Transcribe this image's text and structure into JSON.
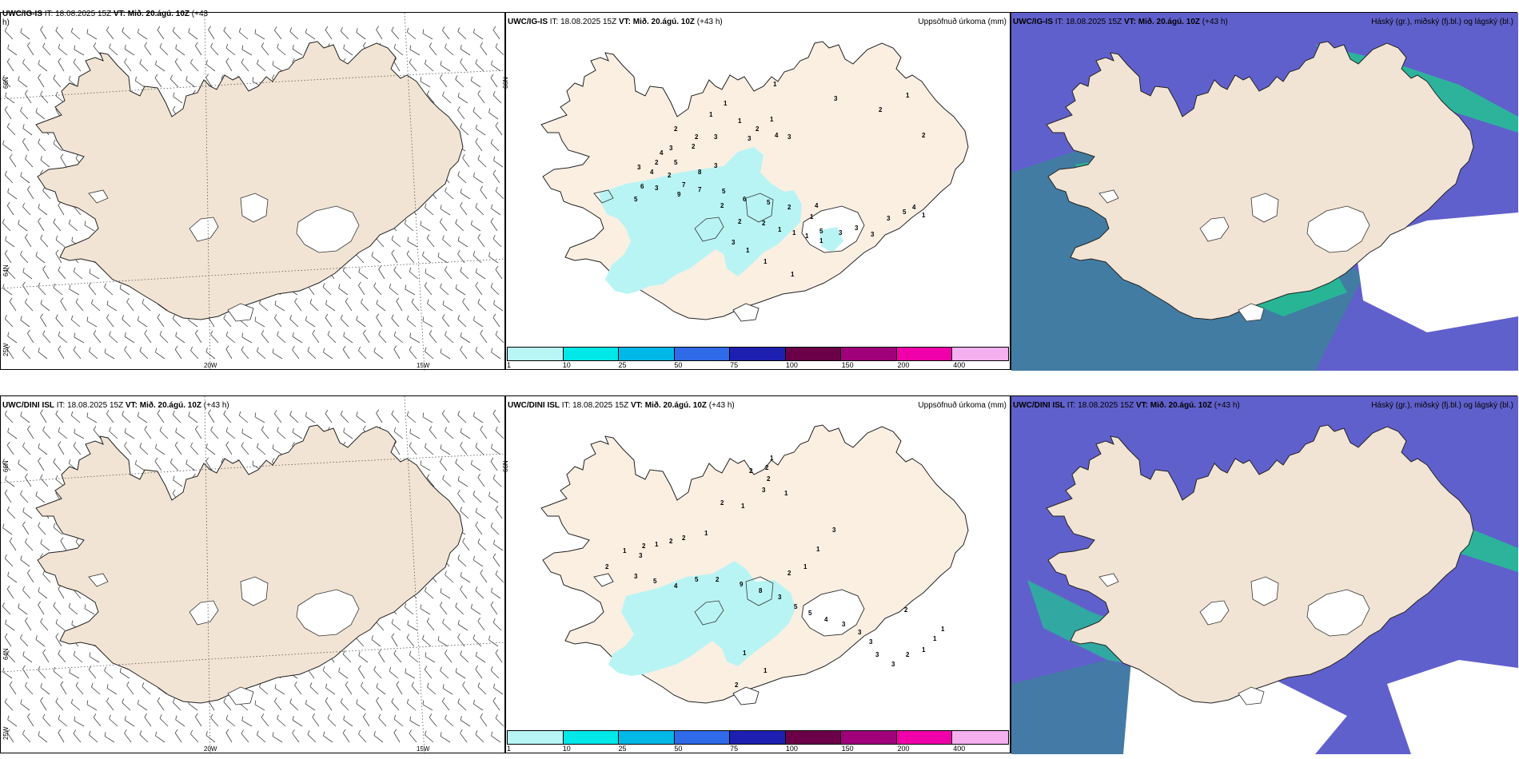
{
  "panels": {
    "top_left": {
      "model": "UWC/IG-IS",
      "it_prefix": "IT:",
      "it_value": "18.08.2025 15Z",
      "vt_prefix": "VT:",
      "vt_value": "Mið. 20.ágú. 10Z",
      "lead": "(+43",
      "lead_cont": "h)"
    },
    "top_mid": {
      "model": "UWC/IG-IS",
      "it_prefix": "IT:",
      "it_value": "18.08.2025 15Z",
      "vt_prefix": "VT:",
      "vt_value": "Mið. 20.ágú. 10Z",
      "lead": "(+43 h)",
      "right_title": "Uppsöfnuð úrkoma (mm)"
    },
    "top_right": {
      "model": "UWC/IG-IS",
      "it_prefix": "IT:",
      "it_value": "18.08.2025 15Z",
      "vt_prefix": "VT:",
      "vt_value": "Mið. 20.ágú. 10Z",
      "lead": "(+43 h)",
      "right_title": "Háský (gr.), miðský (fj.bl.) og lágský (bl.)"
    },
    "bottom_left": {
      "model": "UWC/DINI ISL",
      "it_prefix": "IT:",
      "it_value": "18.08.2025 15Z",
      "vt_prefix": "VT:",
      "vt_value": "Mið. 20.ágú. 10Z",
      "lead": "(+43 h)"
    },
    "bottom_mid": {
      "model": "UWC/DINI ISL",
      "it_prefix": "IT:",
      "it_value": "18.08.2025 15Z",
      "vt_prefix": "VT:",
      "vt_value": "Mið. 20.ágú. 10Z",
      "lead": "(+43 h)",
      "right_title": "Uppsöfnuð úrkoma (mm)"
    },
    "bottom_right": {
      "model": "UWC/DINI ISL",
      "it_prefix": "IT:",
      "it_value": "18.08.2025 15Z",
      "vt_prefix": "VT:",
      "vt_value": "Mið. 20.ágú. 10Z",
      "lead": "(+43 h)",
      "right_title": "Háský (gr.), miðský (fj.bl.) og lágský (bl.)"
    }
  },
  "axis_labels": {
    "lat_66": "66N",
    "lat_64": "64N",
    "lon_25": "25W",
    "lon_20": "20W",
    "lon_15": "15W"
  },
  "colorbar": {
    "ticks": [
      "1",
      "10",
      "25",
      "50",
      "75",
      "100",
      "150",
      "200",
      "400"
    ],
    "colors": [
      "#b8f5f5",
      "#00e8e8",
      "#00b8e8",
      "#2f6ae8",
      "#1d1fb0",
      "#6b0048",
      "#a0007a",
      "#f000a8",
      "#f5b0f0"
    ]
  },
  "colors": {
    "land": "#f2e4d4",
    "land_precip": "#fbefe2",
    "precip_light": "#b9f4f4",
    "low_cloud": "#6060cc",
    "mid_cloud": "#3f7f9f",
    "high_cloud": "#20c890",
    "sea": "#ffffff"
  },
  "precip_labels_top": [
    "1",
    "1",
    "1",
    "1",
    "1",
    "2",
    "2",
    "2",
    "3",
    "3",
    "4",
    "3",
    "2",
    "3",
    "2",
    "4",
    "5",
    "3",
    "4",
    "2",
    "3",
    "8",
    "7",
    "3",
    "6",
    "5",
    "9",
    "7",
    "5",
    "6",
    "5",
    "2",
    "4",
    "1",
    "5",
    "3",
    "3",
    "3",
    "3",
    "5",
    "4",
    "1",
    "2",
    "2",
    "2",
    "1",
    "1",
    "1",
    "1",
    "3",
    "1",
    "1",
    "1",
    "3",
    "2",
    "1",
    "2"
  ],
  "precip_labels_bottom": [
    "1",
    "2",
    "2",
    "2",
    "3",
    "1",
    "2",
    "1",
    "1",
    "2",
    "2",
    "1",
    "2",
    "1",
    "3",
    "2",
    "3",
    "5",
    "4",
    "5",
    "2",
    "9",
    "8",
    "3",
    "5",
    "5",
    "4",
    "3",
    "3",
    "3",
    "3",
    "3",
    "2",
    "1",
    "1",
    "1",
    "2",
    "3",
    "1",
    "1",
    "2",
    "1",
    "1",
    "2"
  ]
}
